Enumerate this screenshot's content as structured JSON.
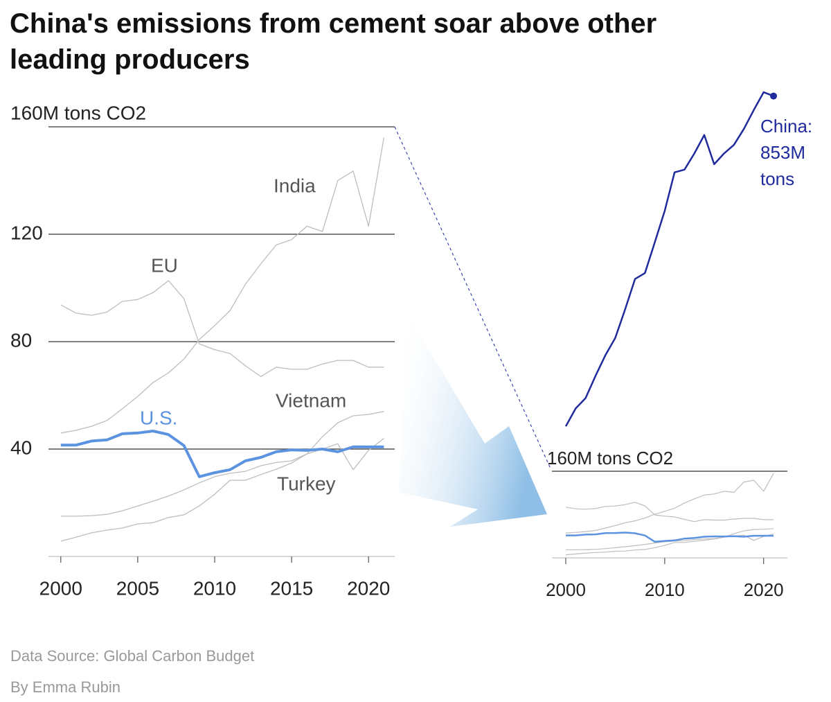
{
  "chart_data": [
    {
      "type": "line",
      "title": "China's emissions from cement soar above other leading producers",
      "x": [
        2000,
        2001,
        2002,
        2003,
        2004,
        2005,
        2006,
        2007,
        2008,
        2009,
        2010,
        2011,
        2012,
        2013,
        2014,
        2015,
        2016,
        2017,
        2018,
        2019,
        2020,
        2021
      ],
      "series": [
        {
          "name": "India",
          "color": "#bdbdbd",
          "values": [
            46,
            47,
            48.5,
            50.6,
            55,
            59.6,
            64.8,
            68.4,
            73.5,
            80.8,
            86,
            91.6,
            101.4,
            109,
            116,
            118,
            123,
            121,
            140,
            143.5,
            123,
            156
          ]
        },
        {
          "name": "EU",
          "color": "#bdbdbd",
          "values": [
            93.7,
            90.6,
            89.8,
            91,
            95,
            95.7,
            98.3,
            102.7,
            96,
            79.2,
            77,
            75.6,
            71,
            67,
            70.5,
            69.7,
            69.7,
            71.7,
            73,
            73,
            70.5,
            70.5
          ]
        },
        {
          "name": "Vietnam",
          "color": "#bdbdbd",
          "values": [
            15,
            15,
            15.2,
            15.7,
            17,
            18.8,
            20.6,
            22.5,
            24.8,
            27.4,
            29.7,
            31,
            31.7,
            33.8,
            35,
            35.6,
            38.2,
            44.6,
            49.8,
            52.4,
            52.9,
            54
          ]
        },
        {
          "name": "Turkey",
          "color": "#bdbdbd",
          "values": [
            5.7,
            7.2,
            8.8,
            9.8,
            10.6,
            12.1,
            12.6,
            14.5,
            15.5,
            18.8,
            23.2,
            28.4,
            28.4,
            30.5,
            32.5,
            34.8,
            38.2,
            40,
            42,
            32.3,
            39.5,
            44
          ]
        },
        {
          "name": "U.S.",
          "color": "#5b93e0",
          "values": [
            41.5,
            41.5,
            43,
            43.4,
            45.7,
            46,
            46.7,
            45.4,
            41.3,
            29.7,
            31.2,
            32.3,
            35.6,
            36.9,
            39,
            39.7,
            39.5,
            40,
            39,
            40.8,
            40.8,
            40.8
          ]
        }
      ],
      "xlim": [
        1999.2,
        2021.7
      ],
      "xticks": [
        2000,
        2005,
        2010,
        2015,
        2020
      ],
      "ylim": [
        0,
        160
      ],
      "yticks": [
        40,
        80,
        120,
        {
          "value": 160,
          "label": "160M tons CO2"
        }
      ],
      "grid": true
    },
    {
      "type": "line",
      "x": [
        2000,
        2001,
        2002,
        2003,
        2004,
        2005,
        2006,
        2007,
        2008,
        2009,
        2010,
        2011,
        2012,
        2013,
        2014,
        2015,
        2016,
        2017,
        2018,
        2019,
        2020,
        2021
      ],
      "series": [
        {
          "name": "China",
          "color": "#1f2a9c",
          "values": [
            243,
            276,
            295,
            336,
            374,
            406,
            459,
            515,
            526,
            583,
            641,
            712,
            717,
            747,
            781,
            727,
            747,
            763,
            792,
            827,
            860,
            853
          ]
        }
      ],
      "annotation": [
        "China:",
        "853M",
        "tons"
      ],
      "xlim": [
        1998.6,
        2022.4
      ],
      "xticks": [
        2000,
        2010,
        2020
      ],
      "ylim": [
        0,
        870
      ],
      "yticks": [
        {
          "value": 160,
          "label": "160M tons CO2"
        }
      ],
      "grid": true
    }
  ],
  "footer": {
    "source": "Data Source: Global Carbon Budget",
    "byline": "By Emma Rubin"
  }
}
